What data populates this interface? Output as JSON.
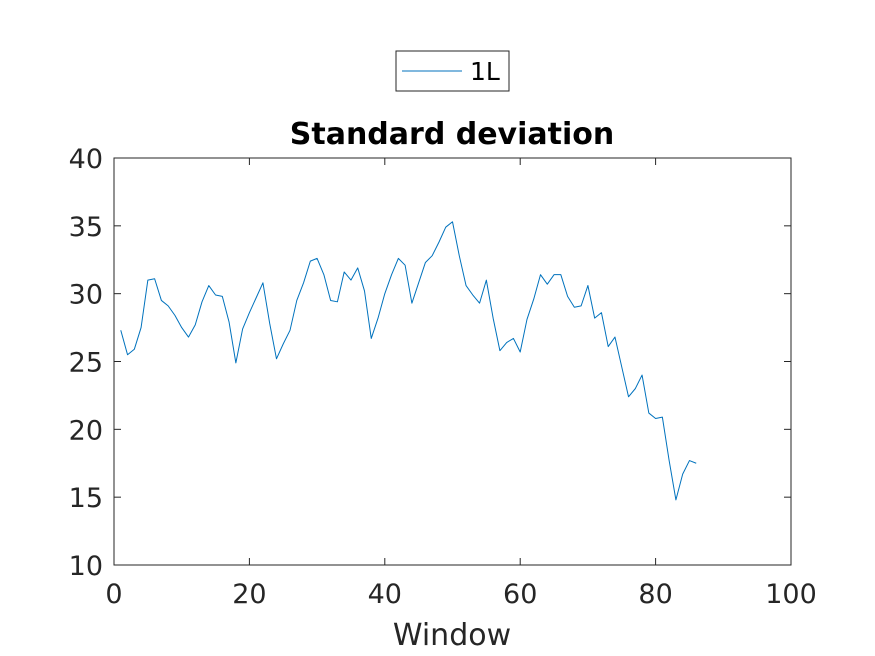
{
  "chart_data": {
    "type": "line",
    "title": "Standard deviation",
    "xlabel": "Window",
    "ylabel": "",
    "xlim": [
      0,
      100
    ],
    "ylim": [
      10,
      40
    ],
    "xticks": [
      0,
      20,
      40,
      60,
      80,
      100
    ],
    "yticks": [
      10,
      15,
      20,
      25,
      30,
      35,
      40
    ],
    "xtick_labels": [
      "0",
      "20",
      "40",
      "60",
      "80",
      "100"
    ],
    "ytick_labels": [
      "10",
      "15",
      "20",
      "25",
      "30",
      "35",
      "40"
    ],
    "grid": false,
    "legend_position": "top-center, outside plot",
    "series": [
      {
        "name": "1L",
        "color": "#0072bd",
        "x": [
          1,
          2,
          3,
          4,
          5,
          6,
          7,
          8,
          9,
          10,
          11,
          12,
          13,
          14,
          15,
          16,
          17,
          18,
          19,
          20,
          21,
          22,
          23,
          24,
          25,
          26,
          27,
          28,
          29,
          30,
          31,
          32,
          33,
          34,
          35,
          36,
          37,
          38,
          39,
          40,
          41,
          42,
          43,
          44,
          45,
          46,
          47,
          48,
          49,
          50,
          51,
          52,
          53,
          54,
          55,
          56,
          57,
          58,
          59,
          60,
          61,
          62,
          63,
          64,
          65,
          66,
          67,
          68,
          69,
          70,
          71,
          72,
          73,
          74,
          75,
          76,
          77,
          78,
          79,
          80,
          81,
          82,
          83,
          84,
          85,
          86
        ],
        "y": [
          27.3,
          25.5,
          25.9,
          27.5,
          31.0,
          31.1,
          29.5,
          29.1,
          28.4,
          27.5,
          26.8,
          27.7,
          29.4,
          30.6,
          29.9,
          29.8,
          27.9,
          24.9,
          27.4,
          28.6,
          29.7,
          30.8,
          27.8,
          25.2,
          26.3,
          27.3,
          29.5,
          30.8,
          32.4,
          32.6,
          31.4,
          29.5,
          29.4,
          31.6,
          31.0,
          31.9,
          30.2,
          26.7,
          28.2,
          30.0,
          31.4,
          32.6,
          32.1,
          29.3,
          30.8,
          32.3,
          32.8,
          33.8,
          34.9,
          35.3,
          32.8,
          30.6,
          29.9,
          29.3,
          31.0,
          28.2,
          25.8,
          26.4,
          26.7,
          25.7,
          28.1,
          29.6,
          31.4,
          30.7,
          31.4,
          31.4,
          29.8,
          29.0,
          29.1,
          30.6,
          28.2,
          28.6,
          26.1,
          26.8,
          24.6,
          22.4,
          23.0,
          24.0,
          21.2,
          20.8,
          20.9,
          17.7,
          14.8,
          16.7,
          17.7,
          17.5
        ]
      }
    ]
  }
}
